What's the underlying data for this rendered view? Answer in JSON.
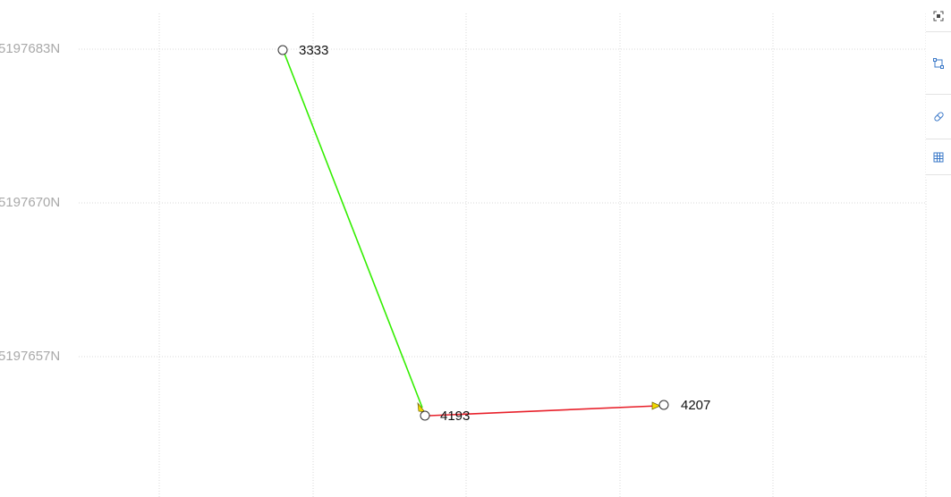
{
  "map": {
    "y_axis_labels": [
      "5197683N",
      "5197670N",
      "5197657N"
    ],
    "points": [
      {
        "id": "p3333",
        "label": "3333"
      },
      {
        "id": "p4193",
        "label": "4193"
      },
      {
        "id": "p4207",
        "label": "4207"
      }
    ],
    "segments": [
      {
        "from": "3333",
        "to": "4193",
        "color": "#33ee00"
      },
      {
        "from": "4193",
        "to": "4207",
        "color": "#e8202a"
      }
    ],
    "arrow_color": "#f2d900",
    "grid_color": "#d8d8d8",
    "axis_label_color": "#a9a9a9"
  },
  "toolbar": {
    "tools": [
      {
        "icon": "fit-extent-icon"
      },
      {
        "icon": "select-rectangle-icon"
      },
      {
        "icon": "measure-icon"
      },
      {
        "icon": "grid-icon"
      }
    ]
  }
}
